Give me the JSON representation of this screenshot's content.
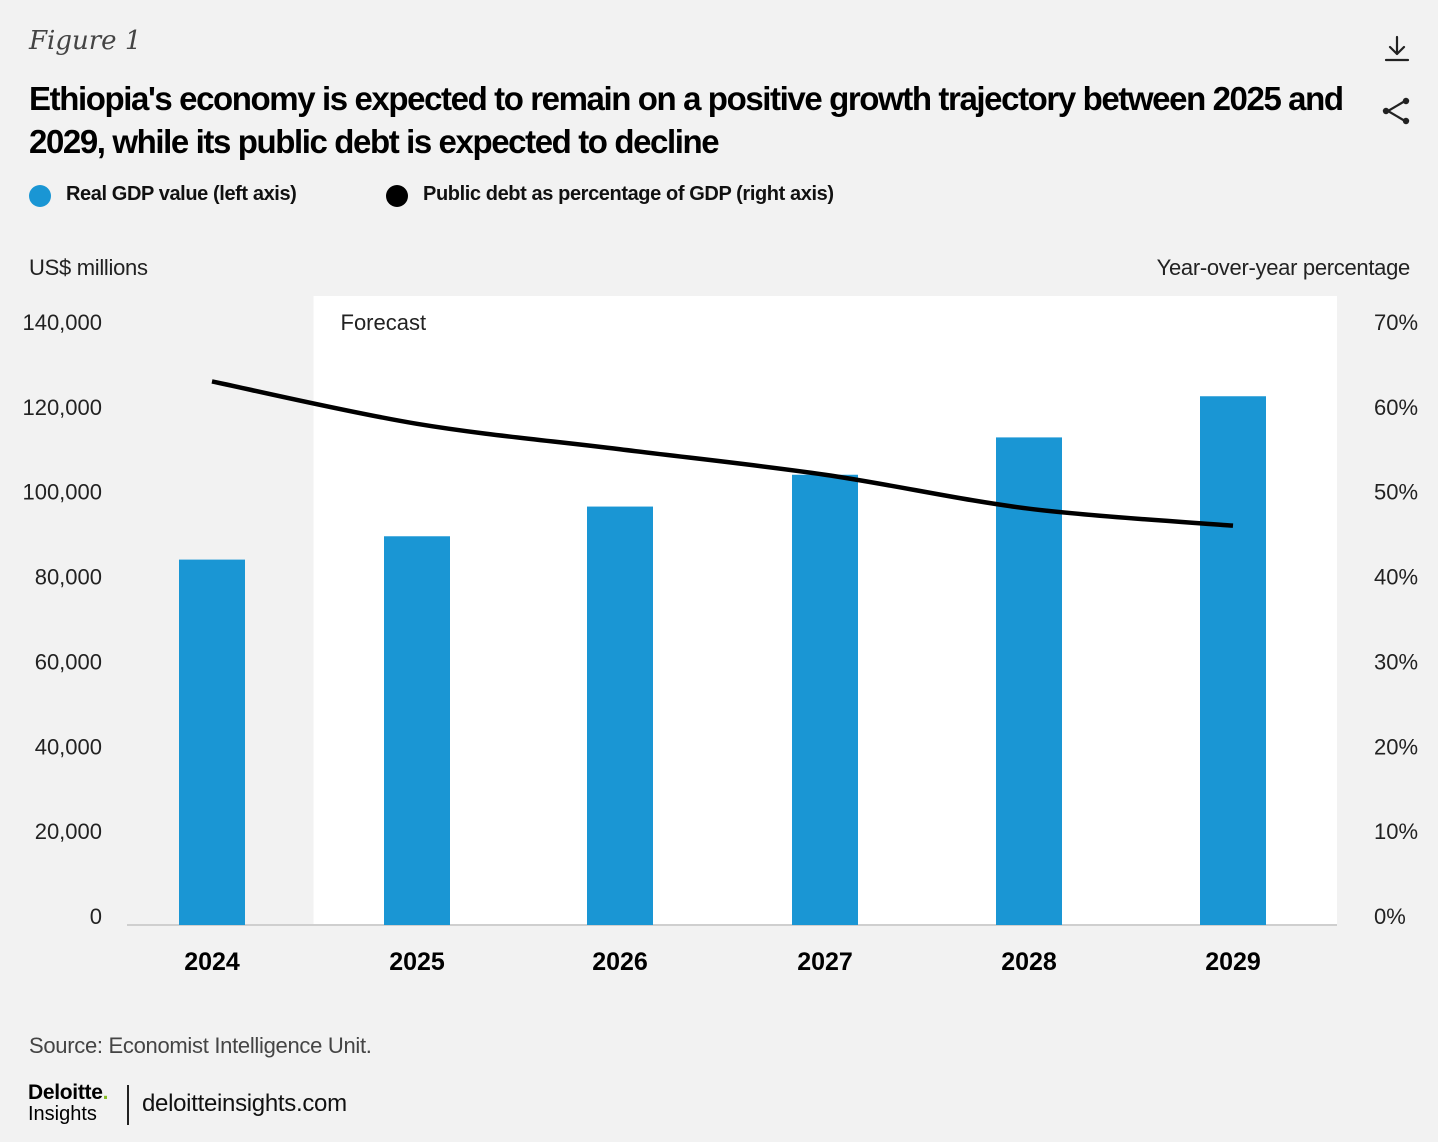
{
  "figure_label": "Figure 1",
  "title": "Ethiopia's economy is expected to remain on a positive growth trajectory between 2025 and 2029, while its public debt is expected to decline",
  "icons": {
    "download": "download-icon",
    "share": "share-icon"
  },
  "legend": [
    {
      "label": "Real GDP value (left axis)",
      "color": "#1a96d4"
    },
    {
      "label": "Public debt as percentage of GDP (right axis)",
      "color": "#000000"
    }
  ],
  "chart_data": {
    "type": "bar",
    "categories": [
      "2024",
      "2025",
      "2026",
      "2027",
      "2028",
      "2029"
    ],
    "series": [
      {
        "name": "Real GDP value (left axis)",
        "type": "bar",
        "axis": "left",
        "color": "#1a96d4",
        "values": [
          84000,
          89500,
          96500,
          104000,
          112800,
          122500
        ]
      },
      {
        "name": "Public debt as percentage of GDP (right axis)",
        "type": "line",
        "axis": "right",
        "color": "#000000",
        "values": [
          63,
          58,
          55,
          52,
          48,
          46
        ]
      }
    ],
    "ylabel_left": "US$ millions",
    "ylabel_right": "Year-over-year percentage",
    "ylim_left": [
      0,
      140000
    ],
    "ylim_right": [
      0,
      70
    ],
    "yticks_left": [
      "140,000",
      "120,000",
      "100,000",
      "80,000",
      "60,000",
      "40,000",
      "20,000",
      "0"
    ],
    "yticks_right": [
      "70%",
      "60%",
      "50%",
      "40%",
      "30%",
      "20%",
      "10%",
      "0%"
    ],
    "annotation": "Forecast",
    "forecast_start": "2025",
    "grid": false
  },
  "source": "Source: Economist Intelligence Unit.",
  "footer": {
    "logo_word": "Deloitte",
    "logo_dot": ".",
    "logo_sub": "Insights",
    "site": "deloitteinsights.com"
  }
}
